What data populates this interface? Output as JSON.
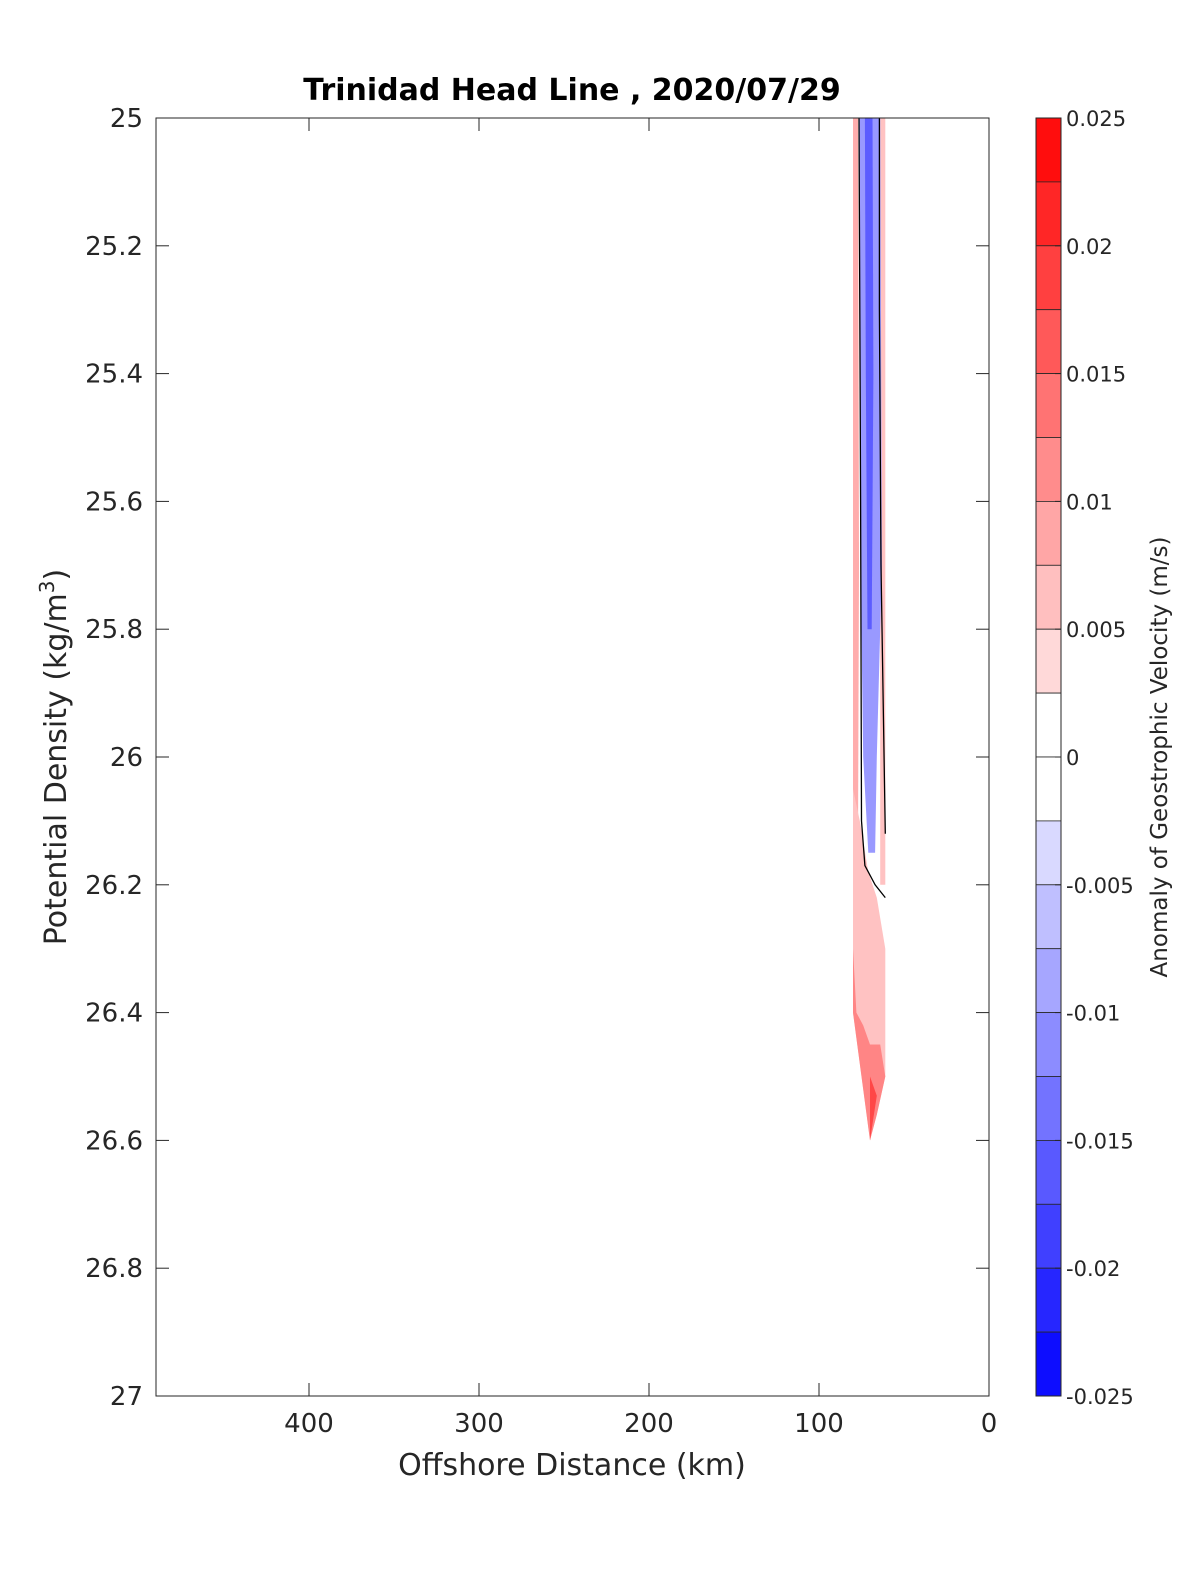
{
  "chart_data": {
    "type": "contour",
    "title": "Trinidad Head Line , 2020/07/29",
    "xlabel": "Offshore Distance (km)",
    "ylabel_main": "Potential Density (kg/m",
    "ylabel_sup": "3",
    "ylabel_close": ")",
    "xlim": [
      490,
      0
    ],
    "x_reversed": true,
    "ylim": [
      25,
      27
    ],
    "y_reversed": true,
    "x_ticks": [
      400,
      300,
      200,
      100,
      0
    ],
    "x_tick_labels": [
      "400",
      "300",
      "200",
      "100",
      "0"
    ],
    "y_ticks": [
      25,
      25.2,
      25.4,
      25.6,
      25.8,
      26,
      26.2,
      26.4,
      26.6,
      26.8,
      27
    ],
    "y_tick_labels": [
      "25",
      "25.2",
      "25.4",
      "25.6",
      "25.8",
      "26",
      "26.2",
      "26.4",
      "26.6",
      "26.8",
      "27"
    ],
    "colorbar": {
      "label": "Anomaly of Geostrophic Velocity (m/s)",
      "min": -0.025,
      "max": 0.025,
      "levels": 20,
      "ticks": [
        0.025,
        0.02,
        0.015,
        0.01,
        0.005,
        0,
        -0.005,
        -0.01,
        -0.015,
        -0.02,
        -0.025
      ],
      "tick_labels": [
        "0.025",
        "0.02",
        "0.015",
        "0.01",
        "0.005",
        "0",
        "-0.005",
        "-0.01",
        "-0.015",
        "-0.02",
        "-0.025"
      ],
      "colormap": "blue-white-red",
      "negative_color": "#0000ff",
      "positive_color": "#ff0000"
    },
    "grid": false,
    "regions": [
      {
        "name": "positive-anomaly-west-strip",
        "value": 0.008,
        "polygon": [
          [
            80,
            25
          ],
          [
            77,
            25
          ],
          [
            76.5,
            25.7
          ],
          [
            77,
            26.1
          ],
          [
            80,
            26.1
          ]
        ]
      },
      {
        "name": "positive-anomaly-east-strip",
        "value": 0.006,
        "polygon": [
          [
            64,
            25
          ],
          [
            61,
            25
          ],
          [
            61,
            26.2
          ],
          [
            64,
            26.2
          ]
        ]
      },
      {
        "name": "negative-anomaly-core",
        "value": -0.01,
        "polygon": [
          [
            76.5,
            25
          ],
          [
            64,
            25
          ],
          [
            63,
            25.7
          ],
          [
            66,
            26
          ],
          [
            67,
            26.15
          ],
          [
            71,
            26.15
          ],
          [
            74,
            26
          ],
          [
            75.5,
            25.7
          ]
        ]
      },
      {
        "name": "negative-anomaly-core-strong",
        "value": -0.016,
        "polygon": [
          [
            73,
            25
          ],
          [
            68.5,
            25
          ],
          [
            68,
            25.4
          ],
          [
            69,
            25.8
          ],
          [
            71.5,
            25.8
          ],
          [
            72.5,
            25.4
          ]
        ]
      },
      {
        "name": "positive-anomaly-deep-lobe",
        "value": 0.006,
        "polygon": [
          [
            80,
            26.05
          ],
          [
            76,
            26.1
          ],
          [
            71,
            26.18
          ],
          [
            66,
            26.22
          ],
          [
            61,
            26.3
          ],
          [
            61,
            26.5
          ],
          [
            66,
            26.56
          ],
          [
            70,
            26.6
          ],
          [
            80,
            26.4
          ]
        ]
      },
      {
        "name": "positive-anomaly-deep-lobe-mid",
        "value": 0.012,
        "polygon": [
          [
            80,
            26.3
          ],
          [
            78,
            26.4
          ],
          [
            74,
            26.42
          ],
          [
            70,
            26.45
          ],
          [
            64,
            26.45
          ],
          [
            61,
            26.5
          ],
          [
            66,
            26.56
          ],
          [
            70,
            26.6
          ],
          [
            80,
            26.4
          ]
        ]
      },
      {
        "name": "positive-anomaly-deep-lobe-strong",
        "value": 0.018,
        "polygon": [
          [
            70,
            26.5
          ],
          [
            66,
            26.53
          ],
          [
            70,
            26.6
          ]
        ]
      }
    ],
    "zero_contours": [
      {
        "name": "zero-contour-west",
        "points": [
          [
            76.5,
            25
          ],
          [
            75.5,
            25.6
          ],
          [
            75,
            26.1
          ],
          [
            73,
            26.17
          ],
          [
            67,
            26.2
          ],
          [
            61,
            26.22
          ]
        ]
      },
      {
        "name": "zero-contour-east",
        "points": [
          [
            64.5,
            25
          ],
          [
            64.5,
            25.3
          ],
          [
            63.5,
            25.7
          ],
          [
            61,
            26.12
          ]
        ]
      }
    ]
  }
}
